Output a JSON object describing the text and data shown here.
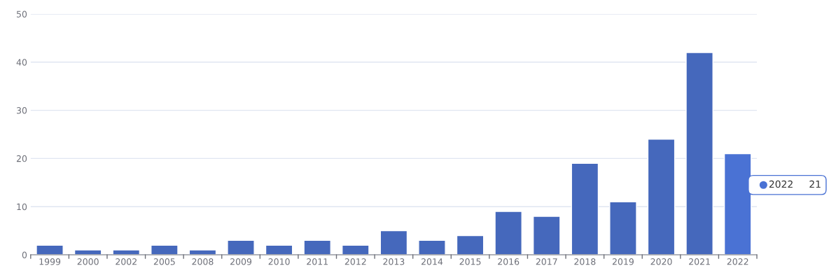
{
  "chart_data": {
    "type": "bar",
    "categories": [
      "1999",
      "2000",
      "2002",
      "2005",
      "2008",
      "2009",
      "2010",
      "2011",
      "2012",
      "2013",
      "2014",
      "2015",
      "2016",
      "2017",
      "2018",
      "2019",
      "2020",
      "2021",
      "2022"
    ],
    "values": [
      2,
      1,
      1,
      2,
      1,
      3,
      2,
      3,
      2,
      5,
      3,
      4,
      9,
      8,
      19,
      11,
      24,
      42,
      21
    ],
    "colors": [
      "#4568bc",
      "#4568bc",
      "#4568bc",
      "#4568bc",
      "#4568bc",
      "#4568bc",
      "#4568bc",
      "#4568bc",
      "#4568bc",
      "#4568bc",
      "#4568bc",
      "#4568bc",
      "#4568bc",
      "#4568bc",
      "#4568bc",
      "#4568bc",
      "#4568bc",
      "#4568bc",
      "#4a72d4"
    ],
    "ylim": [
      0,
      50
    ],
    "yticks": [
      0,
      10,
      20,
      30,
      40,
      50
    ],
    "grid": "y",
    "annotations": [
      "2022     21"
    ]
  }
}
